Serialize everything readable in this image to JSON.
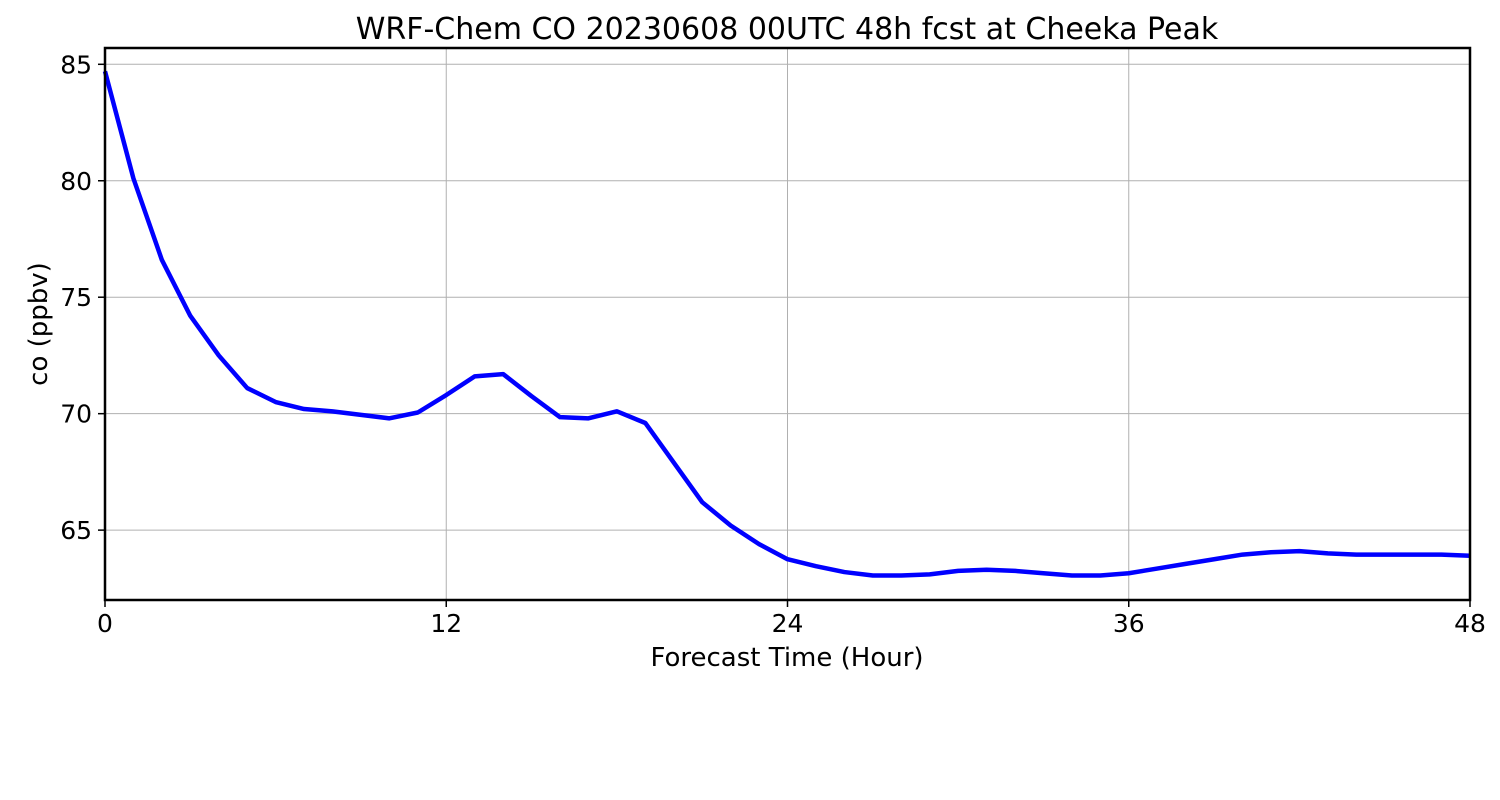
{
  "chart_data": {
    "type": "line",
    "title": "WRF-Chem CO  20230608 00UTC 48h fcst at Cheeka Peak",
    "xlabel": "Forecast Time (Hour)",
    "ylabel": "co  (ppbv)",
    "xlim": [
      0,
      48
    ],
    "ylim": [
      62,
      85.7
    ],
    "xticks": [
      0,
      12,
      24,
      36,
      48
    ],
    "yticks": [
      65,
      70,
      75,
      80,
      85
    ],
    "grid": true,
    "legend": "none",
    "series": [
      {
        "color": "#0000ff",
        "x": [
          0,
          1,
          2,
          3,
          4,
          5,
          6,
          7,
          8,
          9,
          10,
          11,
          12,
          13,
          14,
          15,
          16,
          17,
          18,
          19,
          20,
          21,
          22,
          23,
          24,
          25,
          26,
          27,
          28,
          29,
          30,
          31,
          32,
          33,
          34,
          35,
          36,
          37,
          38,
          39,
          40,
          41,
          42,
          43,
          44,
          45,
          46,
          47,
          48
        ],
        "y": [
          84.7,
          80.1,
          76.6,
          74.2,
          72.5,
          71.1,
          70.5,
          70.2,
          70.1,
          69.95,
          69.8,
          70.05,
          70.8,
          71.6,
          71.7,
          70.75,
          69.85,
          69.8,
          70.1,
          69.6,
          67.9,
          66.2,
          65.2,
          64.4,
          63.75,
          63.45,
          63.2,
          63.05,
          63.05,
          63.1,
          63.25,
          63.3,
          63.25,
          63.15,
          63.05,
          63.05,
          63.15,
          63.35,
          63.55,
          63.75,
          63.95,
          64.05,
          64.1,
          64.0,
          63.95,
          63.95,
          63.95,
          63.95,
          63.9
        ]
      }
    ]
  }
}
